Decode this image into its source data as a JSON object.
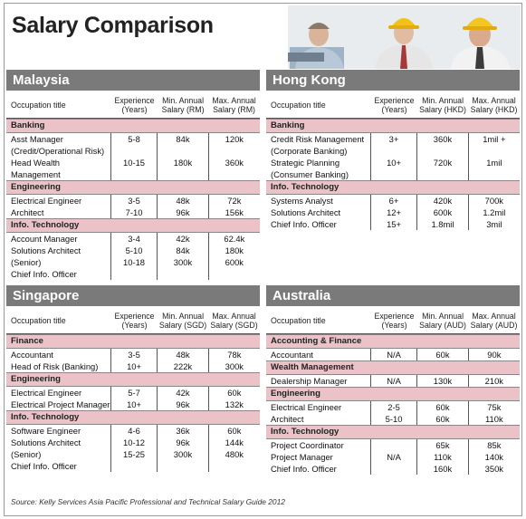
{
  "title": "Salary Comparison",
  "source": "Source: Kelly Services Asia Pacific Professional and Technical Salary Guide 2012",
  "colors": {
    "region_bar": "#7a7a7a",
    "category_bar": "#ebc2c7",
    "rule": "#555555"
  },
  "regions": [
    {
      "name": "Malaysia",
      "headers": {
        "title": "Occupation title",
        "exp": "Experience\n(Years)",
        "min": "Min. Annual\nSalary (RM)",
        "max": "Max. Annual\nSalary (RM)"
      },
      "categories": [
        {
          "name": "Banking",
          "titles": [
            "Asst Manager",
            "(Credit/Operational Risk)",
            "Head Wealth Management"
          ],
          "exp": [
            "5-8",
            "",
            "10-15"
          ],
          "min": [
            "84k",
            "",
            "180k"
          ],
          "max": [
            "120k",
            "",
            "360k"
          ]
        },
        {
          "name": "Engineering",
          "titles": [
            "Electrical Engineer",
            "Architect"
          ],
          "exp": [
            "3-5",
            "7-10"
          ],
          "min": [
            "48k",
            "96k"
          ],
          "max": [
            "72k",
            "156k"
          ]
        },
        {
          "name": "Info. Technology",
          "titles": [
            "Account Manager",
            "Solutions Architect (Senior)",
            "Chief Info. Officer"
          ],
          "exp": [
            "3-4",
            "5-10",
            "10-18"
          ],
          "min": [
            "42k",
            "84k",
            "300k"
          ],
          "max": [
            "62.4k",
            "180k",
            "600k"
          ]
        }
      ]
    },
    {
      "name": "Hong Kong",
      "headers": {
        "title": "Occupation title",
        "exp": "Experience\n(Years)",
        "min": "Min. Annual\nSalary (HKD)",
        "max": "Max. Annual\nSalary (HKD)"
      },
      "categories": [
        {
          "name": "Banking",
          "titles": [
            "Credit Risk Management",
            "(Corporate Banking)",
            "Strategic Planning",
            "(Consumer Banking)"
          ],
          "exp": [
            "3+",
            "",
            "10+",
            ""
          ],
          "min": [
            "360k",
            "",
            "720k",
            ""
          ],
          "max": [
            "1mil +",
            "",
            "1mil",
            ""
          ]
        },
        {
          "name": "Info. Technology",
          "titles": [
            "Systems Analyst",
            "Solutions Architect",
            "Chief Info. Officer"
          ],
          "exp": [
            "6+",
            "12+",
            "15+"
          ],
          "min": [
            "420k",
            "600k",
            "1.8mil"
          ],
          "max": [
            "700k",
            "1.2mil",
            "3mil"
          ]
        }
      ]
    },
    {
      "name": "Singapore",
      "headers": {
        "title": "Occupation title",
        "exp": "Experience\n(Years)",
        "min": "Min. Annual\nSalary (SGD)",
        "max": "Max. Annual\nSalary (SGD)"
      },
      "categories": [
        {
          "name": "Finance",
          "titles": [
            "Accountant",
            "Head of Risk (Banking)"
          ],
          "exp": [
            "3-5",
            "10+"
          ],
          "min": [
            "48k",
            "222k"
          ],
          "max": [
            "78k",
            "300k"
          ]
        },
        {
          "name": "Engineering",
          "titles": [
            "Electrical Engineer",
            "Electrical Project Manager"
          ],
          "exp": [
            "5-7",
            "10+"
          ],
          "min": [
            "42k",
            "96k"
          ],
          "max": [
            "60k",
            "132k"
          ]
        },
        {
          "name": "Info. Technology",
          "titles": [
            "Software Engineer",
            "Solutions Architect (Senior)",
            "Chief Info. Officer"
          ],
          "exp": [
            "4-6",
            "10-12",
            "15-25"
          ],
          "min": [
            "36k",
            "96k",
            "300k"
          ],
          "max": [
            "60k",
            "144k",
            "480k"
          ]
        }
      ]
    },
    {
      "name": "Australia",
      "headers": {
        "title": "Occupation title",
        "exp": "Experience\n(Years)",
        "min": "Min. Annual\nSalary (AUD)",
        "max": "Max. Annual\nSalary (AUD)"
      },
      "categories": [
        {
          "name": "Accounting & Finance",
          "titles": [
            "Accountant"
          ],
          "exp": [
            "N/A"
          ],
          "min": [
            "60k"
          ],
          "max": [
            "90k"
          ]
        },
        {
          "name": "Wealth Management",
          "titles": [
            "Dealership Manager"
          ],
          "exp": [
            "N/A"
          ],
          "min": [
            "130k"
          ],
          "max": [
            "210k"
          ]
        },
        {
          "name": "Engineering",
          "titles": [
            "Electrical Engineer",
            "Architect"
          ],
          "exp": [
            "2-5",
            "5-10"
          ],
          "min": [
            "60k",
            "60k"
          ],
          "max": [
            "75k",
            "110k"
          ]
        },
        {
          "name": "Info. Technology",
          "titles": [
            "Project Coordinator",
            "Project Manager",
            "Chief Info. Officer"
          ],
          "exp": [
            "",
            "N/A",
            ""
          ],
          "min": [
            "65k",
            "110k",
            "160k"
          ],
          "max": [
            "85k",
            "140k",
            "350k"
          ]
        }
      ]
    }
  ]
}
